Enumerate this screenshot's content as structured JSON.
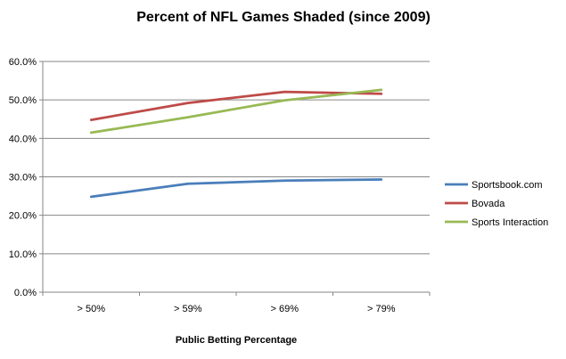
{
  "chart_data": {
    "type": "line",
    "title": "Percent of NFL Games Shaded (since 2009)",
    "xlabel": "Public Betting Percentage",
    "ylabel": "",
    "categories": [
      "> 50%",
      "> 59%",
      "> 69%",
      "> 79%"
    ],
    "ylim": [
      0,
      0.6
    ],
    "yticks": [
      0,
      0.1,
      0.2,
      0.3,
      0.4,
      0.5,
      0.6
    ],
    "ytick_labels": [
      "0.0%",
      "10.0%",
      "20.0%",
      "30.0%",
      "40.0%",
      "50.0%",
      "60.0%"
    ],
    "grid": "horizontal",
    "legend_position": "right",
    "series": [
      {
        "name": "Sportsbook.com",
        "color": "#4A7EBB",
        "values": [
          0.248,
          0.282,
          0.29,
          0.293
        ]
      },
      {
        "name": "Bovada",
        "color": "#BE4B48",
        "values": [
          0.448,
          0.492,
          0.521,
          0.516
        ]
      },
      {
        "name": "Sports Interaction",
        "color": "#98B954",
        "values": [
          0.415,
          0.455,
          0.499,
          0.526
        ]
      }
    ]
  }
}
